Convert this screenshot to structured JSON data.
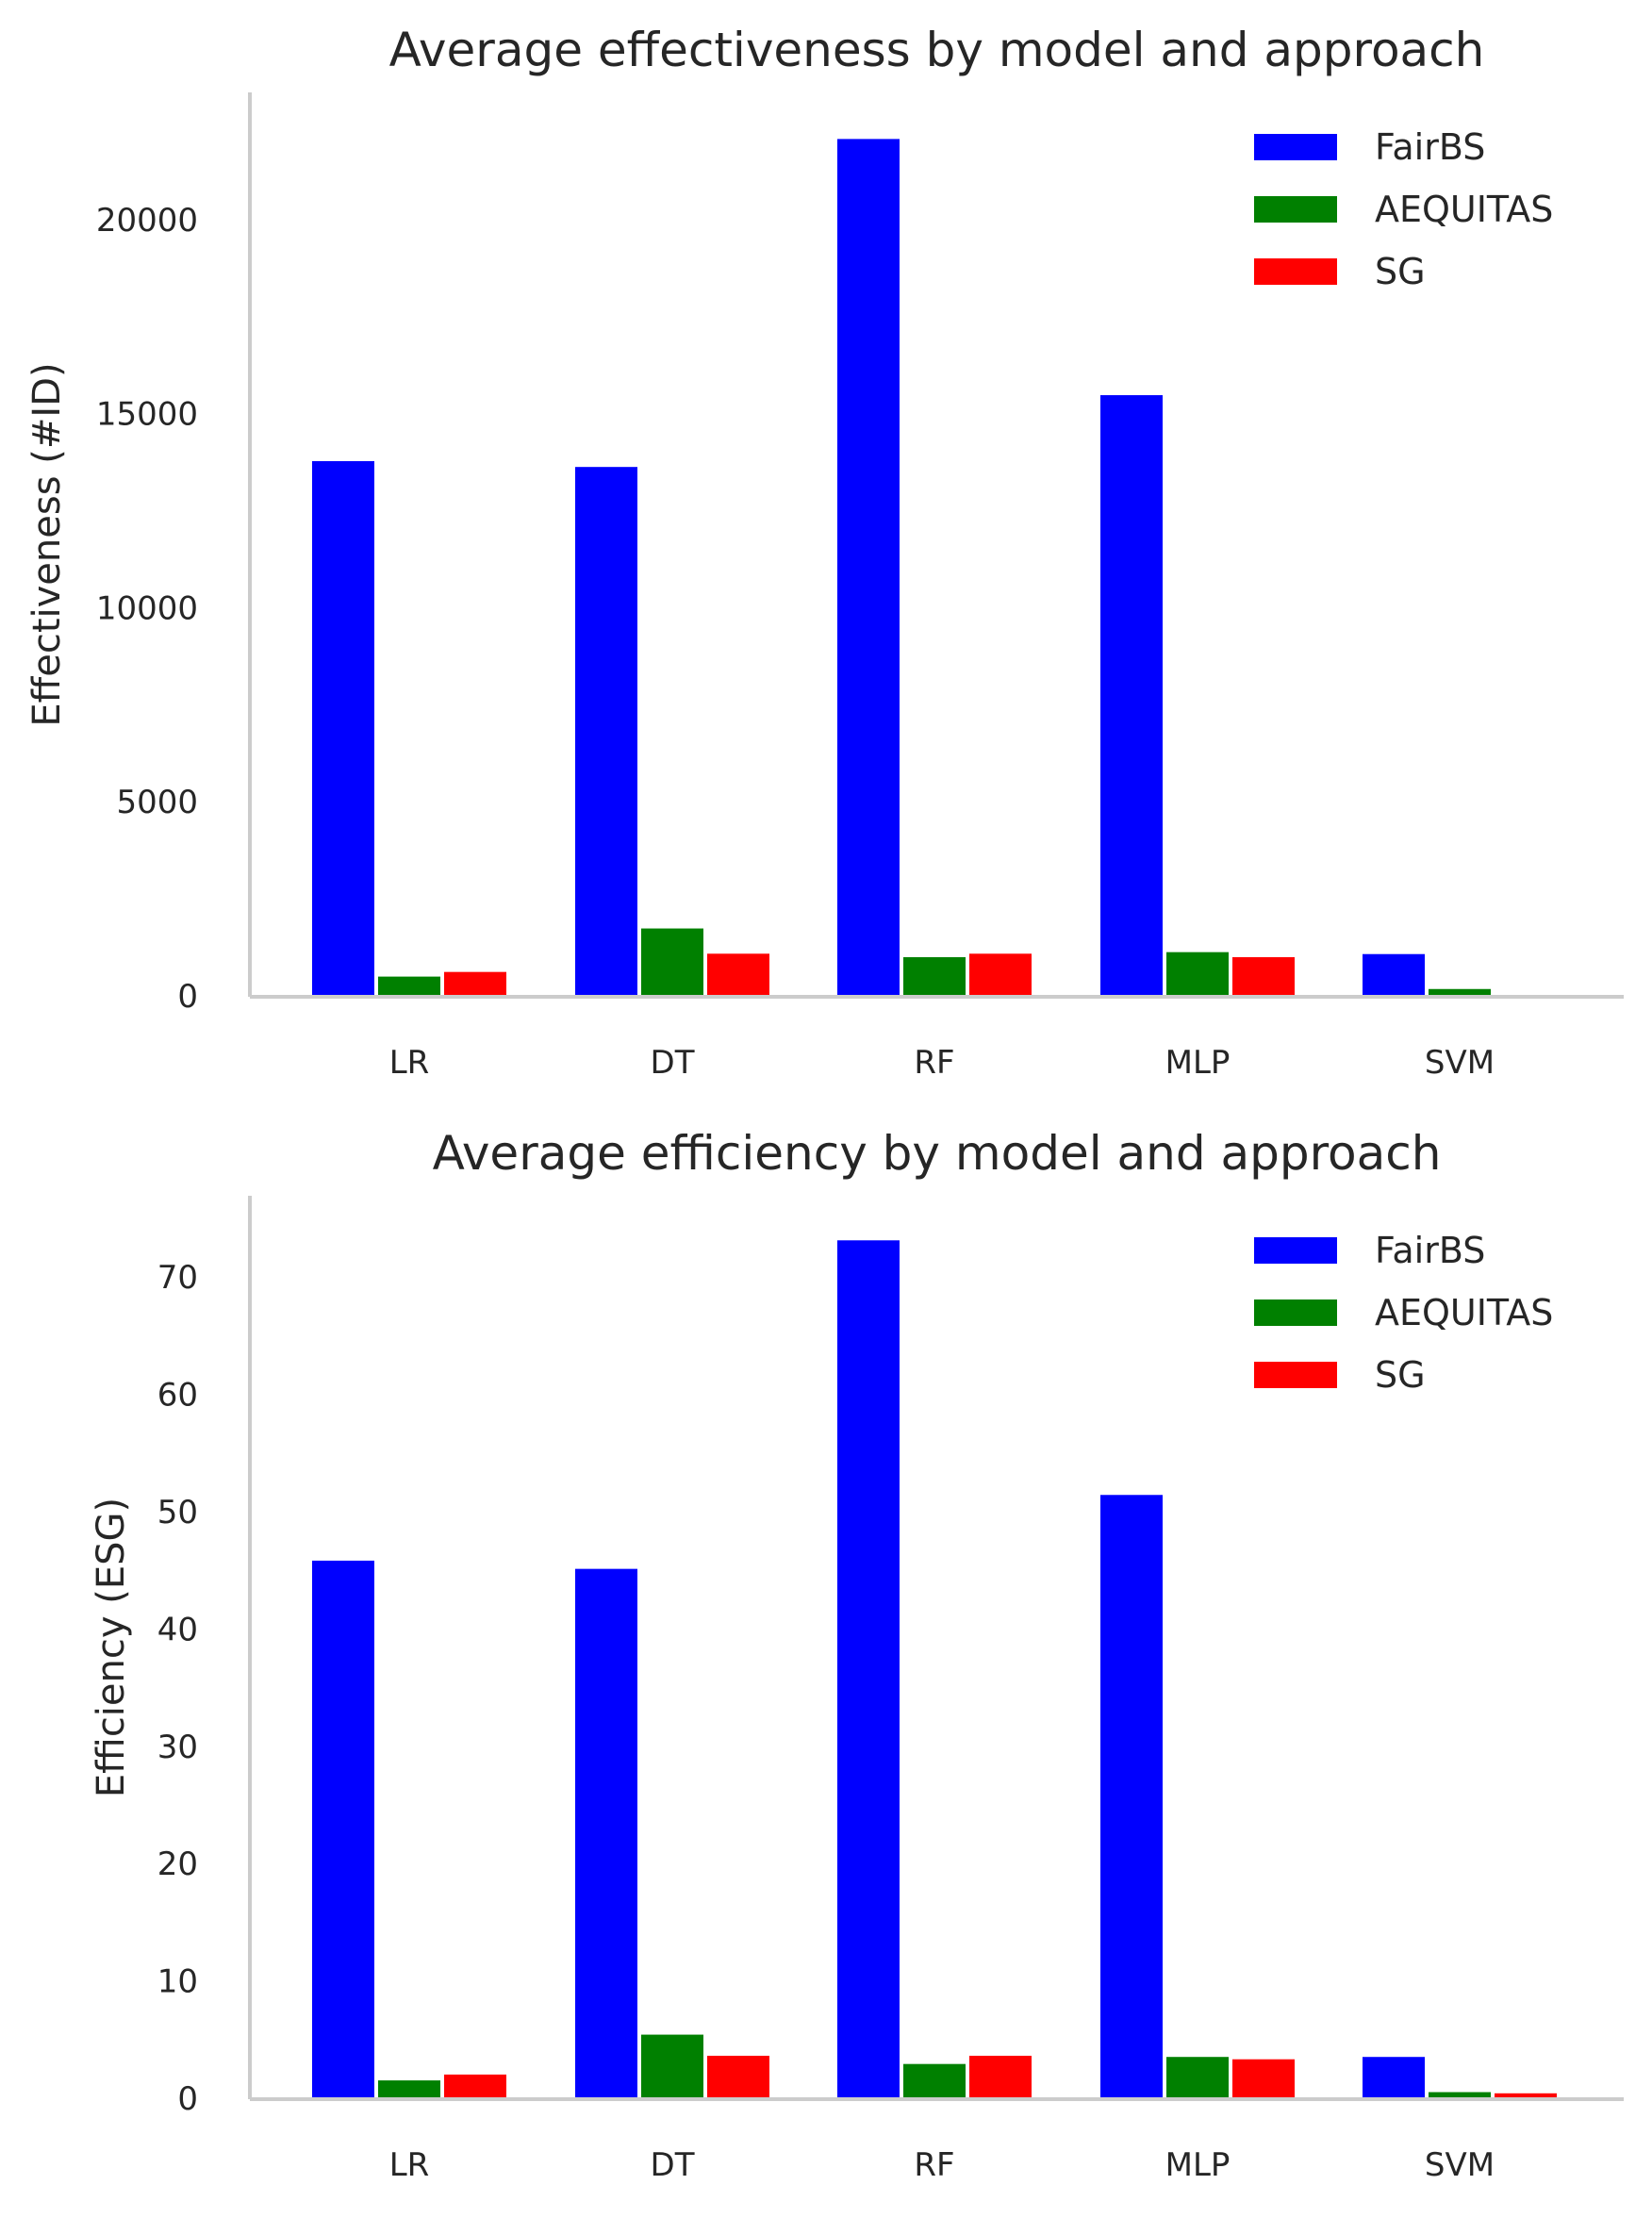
{
  "figure": {
    "colors": {
      "FairBS": "#0000ff",
      "AEQUITAS": "#008000",
      "SG": "#ff0000"
    }
  },
  "chart_data": [
    {
      "type": "bar",
      "title": "Average effectiveness by model and approach",
      "xlabel": "",
      "ylabel": "Effectiveness (#ID)",
      "categories": [
        "LR",
        "DT",
        "RF",
        "MLP",
        "SVM"
      ],
      "series": [
        {
          "name": "FairBS",
          "color": "#0000ff",
          "values": [
            13800,
            13650,
            22100,
            15500,
            1100
          ]
        },
        {
          "name": "AEQUITAS",
          "color": "#008000",
          "values": [
            520,
            1760,
            1020,
            1150,
            200
          ]
        },
        {
          "name": "SG",
          "color": "#ff0000",
          "values": [
            640,
            1110,
            1110,
            1020,
            0
          ]
        }
      ],
      "ylim": [
        0,
        23300
      ],
      "yticks": [
        0,
        5000,
        10000,
        15000,
        20000
      ],
      "ytick_labels": [
        "0",
        "5000",
        "10000",
        "15000",
        "20000"
      ],
      "legend_position": "top-right",
      "grid": false
    },
    {
      "type": "bar",
      "title": "Average efficiency by model and approach",
      "xlabel": "",
      "ylabel": "Efficiency (ESG)",
      "categories": [
        "LR",
        "DT",
        "RF",
        "MLP",
        "SVM"
      ],
      "series": [
        {
          "name": "FairBS",
          "color": "#0000ff",
          "values": [
            45.9,
            45.2,
            73.2,
            51.5,
            3.6
          ]
        },
        {
          "name": "AEQUITAS",
          "color": "#008000",
          "values": [
            1.6,
            5.5,
            3.0,
            3.6,
            0.6
          ]
        },
        {
          "name": "SG",
          "color": "#ff0000",
          "values": [
            2.1,
            3.7,
            3.7,
            3.4,
            0.5
          ]
        }
      ],
      "ylim": [
        0,
        77
      ],
      "yticks": [
        0,
        10,
        20,
        30,
        40,
        50,
        60,
        70
      ],
      "ytick_labels": [
        "0",
        "10",
        "20",
        "30",
        "40",
        "50",
        "60",
        "70"
      ],
      "legend_position": "top-right",
      "grid": false
    }
  ]
}
